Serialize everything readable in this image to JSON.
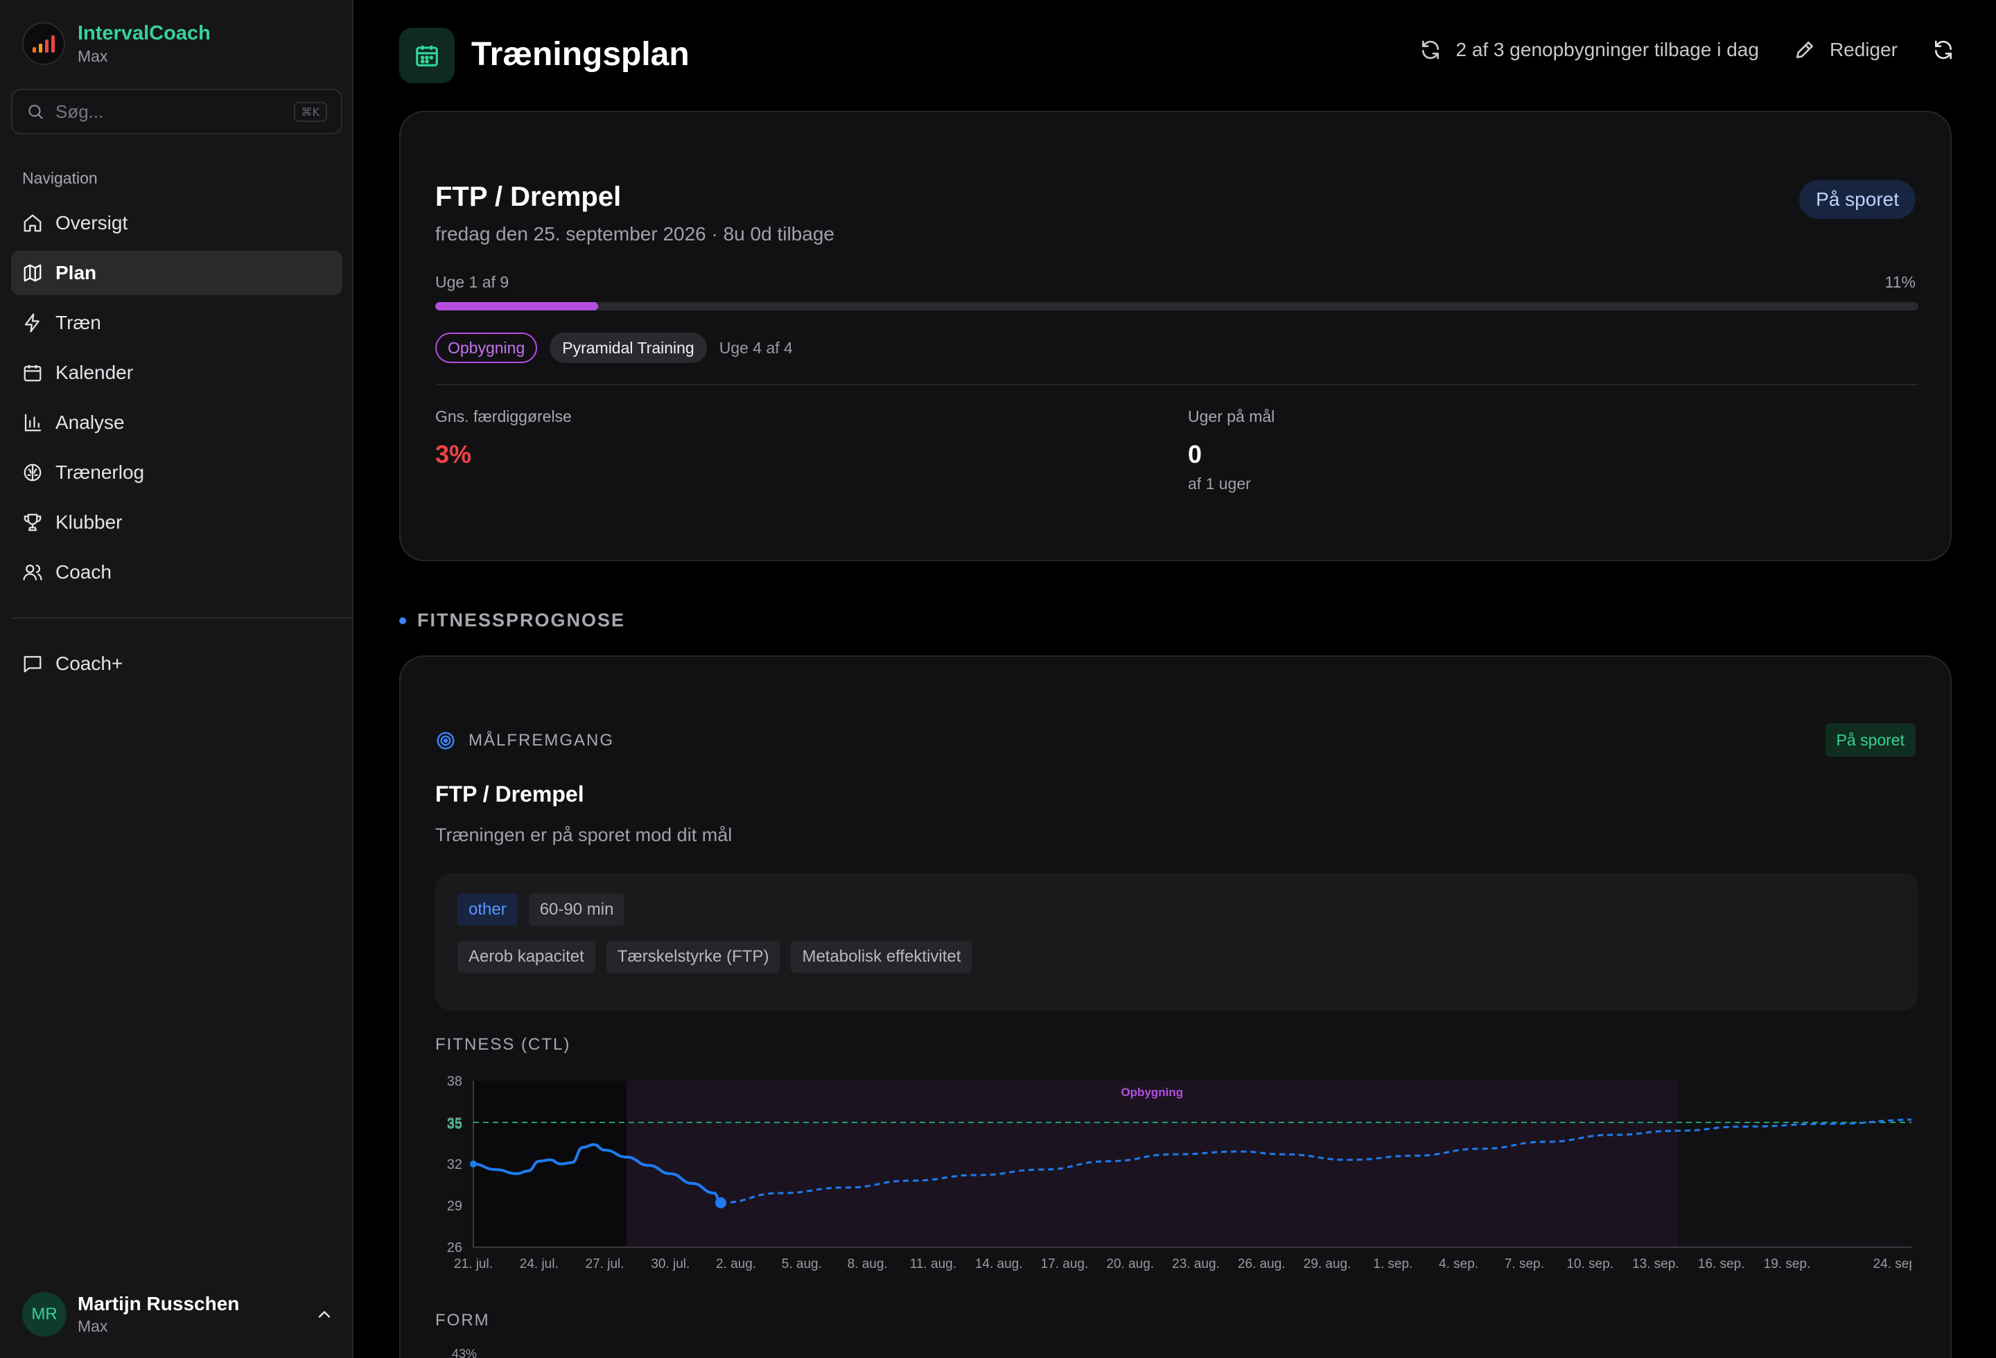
{
  "app": {
    "name": "IntervalCoach",
    "tier": "Max"
  },
  "search": {
    "placeholder": "Søg...",
    "shortcut": "⌘K"
  },
  "sidebar": {
    "heading": "Navigation",
    "items": [
      {
        "label": "Oversigt",
        "icon": "home-icon"
      },
      {
        "label": "Plan",
        "icon": "map-icon",
        "active": true
      },
      {
        "label": "Træn",
        "icon": "bolt-icon"
      },
      {
        "label": "Kalender",
        "icon": "calendar-icon"
      },
      {
        "label": "Analyse",
        "icon": "bar-chart-icon"
      },
      {
        "label": "Trænerlog",
        "icon": "brain-icon"
      },
      {
        "label": "Klubber",
        "icon": "trophy-icon"
      },
      {
        "label": "Coach",
        "icon": "users-icon"
      }
    ],
    "extra": [
      {
        "label": "Coach+",
        "icon": "chat-icon"
      }
    ]
  },
  "user": {
    "initials": "MR",
    "name": "Martijn Russchen",
    "tier": "Max"
  },
  "header": {
    "title": "Træningsplan",
    "rebuilds": "2 af 3 genopbygninger tilbage i dag",
    "edit": "Rediger"
  },
  "goal_card": {
    "title": "FTP / Drempel",
    "subtitle": "fredag den 25. september 2026 · 8u 0d tilbage",
    "status": "På sporet",
    "week": "Uge 1 af 9",
    "percent": "11%",
    "progress": 0.11,
    "phase": "Opbygning",
    "plan": "Pyramidal Training",
    "phase_week": "Uge 4 af 4",
    "stats": [
      {
        "label": "Gns. færdiggørelse",
        "value": "3%",
        "sub": ""
      },
      {
        "label": "Uger på mål",
        "value": "0",
        "sub": "af 1 uger"
      }
    ]
  },
  "forecast": {
    "section_title": "FITNESSPROGNOSE",
    "progress_label": "MÅLFREMGANG",
    "status": "På sporet",
    "title": "FTP / Drempel",
    "subtitle": "Træningen er på sporet mod dit mål",
    "tags_primary": [
      "other",
      "60-90 min"
    ],
    "tags_focus": [
      "Aerob kapacitet",
      "Tærskelstyrke (FTP)",
      "Metabolisk effektivitet"
    ],
    "chart_title": "FITNESS (CTL)",
    "form_title": "FORM",
    "form_first_tick": "43%"
  },
  "chart_data": {
    "type": "line",
    "title": "FITNESS (CTL)",
    "x_labels": [
      "21. jul.",
      "24. jul.",
      "27. jul.",
      "30. jul.",
      "2. aug.",
      "5. aug.",
      "8. aug.",
      "11. aug.",
      "14. aug.",
      "17. aug.",
      "20. aug.",
      "23. aug.",
      "26. aug.",
      "29. aug.",
      "1. sep.",
      "4. sep.",
      "7. sep.",
      "10. sep.",
      "13. sep.",
      "16. sep.",
      "19. sep.",
      "24. sep."
    ],
    "x_label_days": [
      0,
      3,
      6,
      9,
      12,
      15,
      18,
      21,
      24,
      27,
      30,
      33,
      36,
      39,
      42,
      45,
      48,
      51,
      54,
      57,
      60,
      65
    ],
    "y_ticks": [
      38,
      35,
      32,
      29,
      26
    ],
    "ylim": [
      26,
      38
    ],
    "xlim": [
      0,
      66
    ],
    "target": {
      "value": 35,
      "label": "35"
    },
    "phase_band": {
      "label": "Opbygning",
      "from": 7,
      "to": 55
    },
    "series": [
      {
        "style": "solid",
        "color": "#1e7bf0",
        "points": [
          [
            0,
            32.0
          ],
          [
            1,
            31.6
          ],
          [
            2,
            31.3
          ],
          [
            2.5,
            31.5
          ],
          [
            3,
            32.2
          ],
          [
            3.5,
            32.3
          ],
          [
            4,
            32.0
          ],
          [
            4.5,
            32.1
          ],
          [
            5,
            33.2
          ],
          [
            5.5,
            33.4
          ],
          [
            6,
            33.0
          ],
          [
            7,
            32.5
          ],
          [
            8,
            31.9
          ],
          [
            9,
            31.3
          ],
          [
            10,
            30.6
          ],
          [
            11,
            29.9
          ],
          [
            11.3,
            29.2
          ]
        ]
      },
      {
        "style": "dashed",
        "color": "#1e7bf0",
        "points": [
          [
            11.3,
            29.2
          ],
          [
            14,
            29.9
          ],
          [
            17,
            30.3
          ],
          [
            20,
            30.8
          ],
          [
            23,
            31.2
          ],
          [
            26,
            31.6
          ],
          [
            29,
            32.2
          ],
          [
            32,
            32.7
          ],
          [
            35,
            32.9
          ],
          [
            37,
            32.7
          ],
          [
            40,
            32.3
          ],
          [
            43,
            32.6
          ],
          [
            46,
            33.1
          ],
          [
            49,
            33.6
          ],
          [
            52,
            34.1
          ],
          [
            55,
            34.4
          ],
          [
            58,
            34.7
          ],
          [
            62,
            34.9
          ],
          [
            66,
            35.2
          ]
        ]
      }
    ]
  },
  "colors": {
    "accent": "#34d399",
    "brand_green": "#34d399",
    "series": "#1e7bf0",
    "phase": "#b44ee0",
    "negative": "#ef4444",
    "status_blue_bg": "#172541"
  }
}
